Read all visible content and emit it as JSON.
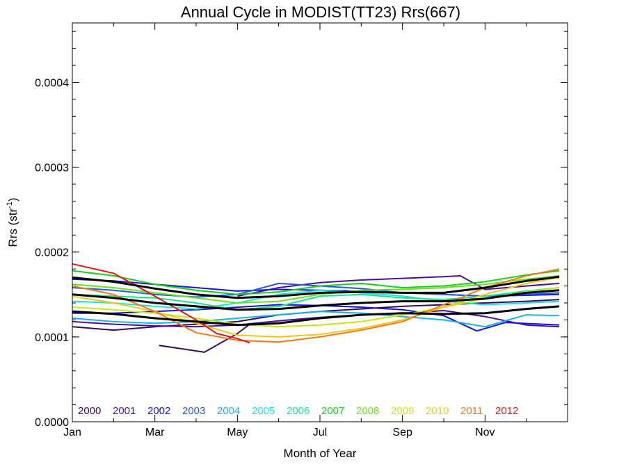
{
  "chart_data": {
    "type": "line",
    "title": "Annual Cycle in MODIST(TT23) Rrs(667)",
    "xlabel": "Month of Year",
    "ylabel": "Rrs (str",
    "ylabel_sup": "-1",
    "ylabel_close": ")",
    "xlim": [
      0,
      12
    ],
    "ylim": [
      0,
      0.00047
    ],
    "x_ticks": [
      {
        "value": 0,
        "label": "Jan"
      },
      {
        "value": 2,
        "label": "Mar"
      },
      {
        "value": 4,
        "label": "May"
      },
      {
        "value": 6,
        "label": "Jul"
      },
      {
        "value": 8,
        "label": "Sep"
      },
      {
        "value": 10,
        "label": "Nov"
      }
    ],
    "y_ticks": [
      {
        "value": 0.0,
        "label": "0.0000"
      },
      {
        "value": 0.0001,
        "label": "0.0001"
      },
      {
        "value": 0.0002,
        "label": "0.0002"
      },
      {
        "value": 0.0003,
        "label": "0.0003"
      },
      {
        "value": 0.0004,
        "label": "0.0004"
      }
    ],
    "legend_position": "bottom-left",
    "series": [
      {
        "name": "2000",
        "color": "#3b0a5c",
        "points": [
          [
            2.1,
            9e-05
          ],
          [
            3.2,
            8.2e-05
          ],
          [
            4,
            0.000104
          ],
          [
            4.3,
            0.000115
          ]
        ]
      },
      {
        "name": "2000",
        "color": "#3b0a5c",
        "points": [
          [
            0,
            0.000112
          ],
          [
            1,
            0.000108
          ],
          [
            2,
            0.000112
          ],
          [
            3,
            0.000115
          ],
          [
            4,
            0.000118
          ],
          [
            5,
            0.000126
          ],
          [
            6,
            0.00013
          ],
          [
            7,
            0.000133
          ],
          [
            8,
            0.000136
          ],
          [
            9,
            0.000138
          ],
          [
            10,
            0.00014
          ],
          [
            11,
            0.000142
          ],
          [
            11.8,
            0.000144
          ]
        ]
      },
      {
        "name": "2001",
        "color": "#4a0fa0",
        "points": [
          [
            4,
            0.000148
          ],
          [
            5,
            0.000158
          ],
          [
            6,
            0.000164
          ],
          [
            7,
            0.000167
          ],
          [
            8,
            0.000169
          ],
          [
            9,
            0.000171
          ],
          [
            9.4,
            0.000172
          ],
          [
            10,
            0.000156
          ],
          [
            11,
            0.00016
          ],
          [
            11.8,
            0.000163
          ]
        ]
      },
      {
        "name": "2001",
        "color": "#4a0fa0",
        "points": [
          [
            0,
            0.000118
          ],
          [
            1,
            0.000115
          ],
          [
            2,
            0.000113
          ],
          [
            3,
            0.000112
          ],
          [
            4,
            0.000114
          ],
          [
            5,
            0.000119
          ],
          [
            6,
            0.000123
          ],
          [
            7,
            0.000126
          ],
          [
            8,
            0.000128
          ],
          [
            9,
            0.000131
          ],
          [
            10,
            0.000124
          ],
          [
            11,
            0.000114
          ],
          [
            11.8,
            0.000112
          ]
        ]
      },
      {
        "name": "2002",
        "color": "#1414d2",
        "points": [
          [
            0,
            0.000168
          ],
          [
            1,
            0.000166
          ],
          [
            2,
            0.000162
          ],
          [
            3,
            0.000158
          ],
          [
            4,
            0.000154
          ],
          [
            5,
            0.000156
          ],
          [
            6,
            0.000155
          ],
          [
            7,
            0.000154
          ],
          [
            8,
            0.000152
          ],
          [
            9,
            0.00015
          ],
          [
            10,
            0.000148
          ],
          [
            11,
            0.000149
          ],
          [
            11.8,
            0.00015
          ]
        ]
      },
      {
        "name": "2002",
        "color": "#1414d2",
        "points": [
          [
            0,
            0.000128
          ],
          [
            1,
            0.000128
          ],
          [
            2,
            0.00013
          ],
          [
            3,
            0.000132
          ],
          [
            4,
            0.000135
          ],
          [
            5,
            0.000138
          ],
          [
            6,
            0.000137
          ],
          [
            7,
            0.000135
          ],
          [
            8,
            0.000132
          ],
          [
            9,
            0.000125
          ],
          [
            9.8,
            0.000107
          ],
          [
            10.5,
            0.000117
          ],
          [
            11.8,
            0.000114
          ]
        ]
      },
      {
        "name": "2003",
        "color": "#1e5ce6",
        "points": [
          [
            0,
            0.000158
          ],
          [
            1,
            0.000155
          ],
          [
            2,
            0.00015
          ],
          [
            3,
            0.000147
          ],
          [
            4,
            0.00015
          ],
          [
            5,
            0.000163
          ],
          [
            6,
            0.00016
          ],
          [
            7,
            0.000157
          ],
          [
            8,
            0.000152
          ],
          [
            9,
            0.00015
          ],
          [
            10,
            0.000148
          ],
          [
            11,
            0.00015
          ],
          [
            11.8,
            0.000152
          ]
        ]
      },
      {
        "name": "2004",
        "color": "#14b4e6",
        "points": [
          [
            0,
            0.000122
          ],
          [
            1,
            0.000118
          ],
          [
            2,
            0.000116
          ],
          [
            3,
            0.000118
          ],
          [
            4,
            0.000122
          ],
          [
            5,
            0.000126
          ],
          [
            6,
            0.00013
          ],
          [
            7,
            0.000128
          ],
          [
            8,
            0.000124
          ],
          [
            9,
            0.00012
          ],
          [
            10,
            0.000112
          ],
          [
            11,
            0.000126
          ],
          [
            11.8,
            0.000125
          ]
        ]
      },
      {
        "name": "2005",
        "color": "#14e6dc",
        "points": [
          [
            0,
            0.000142
          ],
          [
            1,
            0.00014
          ],
          [
            2,
            0.000136
          ],
          [
            3,
            0.000133
          ],
          [
            4,
            0.00014
          ],
          [
            5,
            0.00015
          ],
          [
            6,
            0.000155
          ],
          [
            7,
            0.000152
          ],
          [
            8,
            0.000148
          ],
          [
            9,
            0.000142
          ],
          [
            10,
            0.000138
          ],
          [
            11,
            0.00014
          ],
          [
            11.8,
            0.000142
          ]
        ]
      },
      {
        "name": "2006",
        "color": "#14e68c",
        "points": [
          [
            0,
            0.00015
          ],
          [
            1,
            0.000148
          ],
          [
            2,
            0.000146
          ],
          [
            3,
            0.00014
          ],
          [
            4,
            0.000132
          ],
          [
            5,
            0.000136
          ],
          [
            6,
            0.000148
          ],
          [
            7,
            0.00015
          ],
          [
            8,
            0.000146
          ],
          [
            9,
            0.000144
          ],
          [
            10,
            0.000148
          ],
          [
            11,
            0.000154
          ],
          [
            11.8,
            0.000158
          ]
        ]
      },
      {
        "name": "2007",
        "color": "#14d214",
        "points": [
          [
            0,
            0.000178
          ],
          [
            1,
            0.000172
          ],
          [
            2,
            0.000162
          ],
          [
            3,
            0.000155
          ],
          [
            4,
            0.00015
          ],
          [
            5,
            0.000153
          ],
          [
            6,
            0.00016
          ],
          [
            7,
            0.000163
          ],
          [
            8,
            0.000158
          ],
          [
            9,
            0.00016
          ],
          [
            10,
            0.000165
          ],
          [
            11,
            0.000173
          ],
          [
            11.8,
            0.000178
          ]
        ]
      },
      {
        "name": "2008",
        "color": "#64e614",
        "points": [
          [
            0,
            0.000162
          ],
          [
            1,
            0.000158
          ],
          [
            2,
            0.000152
          ],
          [
            3,
            0.000146
          ],
          [
            4,
            0.00014
          ],
          [
            5,
            0.000142
          ],
          [
            6,
            0.00015
          ],
          [
            7,
            0.000155
          ],
          [
            8,
            0.000156
          ],
          [
            9,
            0.000158
          ],
          [
            10,
            0.000162
          ],
          [
            11,
            0.000168
          ],
          [
            11.8,
            0.000172
          ]
        ]
      },
      {
        "name": "2009",
        "color": "#c8e614",
        "points": [
          [
            0,
            0.000135
          ],
          [
            1,
            0.000132
          ],
          [
            2,
            0.000128
          ],
          [
            3,
            0.000122
          ],
          [
            4,
            0.000115
          ],
          [
            5,
            0.000112
          ],
          [
            6,
            0.000114
          ],
          [
            7,
            0.000118
          ],
          [
            8,
            0.000126
          ],
          [
            9,
            0.000135
          ],
          [
            10,
            0.000145
          ],
          [
            11,
            0.000153
          ],
          [
            11.8,
            0.000158
          ]
        ]
      },
      {
        "name": "2010",
        "color": "#f0c814",
        "points": [
          [
            0,
            0.000148
          ],
          [
            1,
            0.00014
          ],
          [
            2,
            0.00013
          ],
          [
            3,
            0.000116
          ],
          [
            4,
            0.000102
          ],
          [
            5,
            0.0001
          ],
          [
            6,
            0.000103
          ],
          [
            7,
            0.00011
          ],
          [
            8,
            0.00012
          ],
          [
            9,
            0.000135
          ],
          [
            10,
            0.00015
          ],
          [
            11,
            0.000163
          ],
          [
            11.8,
            0.00017
          ]
        ]
      },
      {
        "name": "2011",
        "color": "#f57814",
        "points": [
          [
            0,
            0.00016
          ],
          [
            1,
            0.00015
          ],
          [
            2,
            0.00013
          ],
          [
            3,
            0.000105
          ],
          [
            4,
            9.6e-05
          ],
          [
            5,
            9.4e-05
          ],
          [
            6,
            0.0001
          ],
          [
            7,
            0.000108
          ],
          [
            8,
            0.000118
          ],
          [
            9,
            0.000138
          ],
          [
            10,
            0.000158
          ],
          [
            11,
            0.000172
          ],
          [
            11.8,
            0.00018
          ]
        ]
      },
      {
        "name": "2012",
        "color": "#e61414",
        "points": [
          [
            0,
            0.000186
          ],
          [
            1,
            0.000175
          ],
          [
            2,
            0.000148
          ],
          [
            3,
            0.00012
          ],
          [
            3.5,
            0.000104
          ],
          [
            4,
            9.8e-05
          ],
          [
            4.3,
            9.3e-05
          ]
        ]
      },
      {
        "name": "",
        "color": "#000000",
        "bold": true,
        "points": [
          [
            0,
            0.00017
          ],
          [
            1,
            0.000165
          ],
          [
            2,
            0.000157
          ],
          [
            3,
            0.00015
          ],
          [
            4,
            0.000146
          ],
          [
            5,
            0.000148
          ],
          [
            6,
            0.000152
          ],
          [
            7,
            0.000153
          ],
          [
            8,
            0.000152
          ],
          [
            9,
            0.000152
          ],
          [
            10,
            0.000158
          ],
          [
            11,
            0.000166
          ],
          [
            11.8,
            0.000171
          ]
        ]
      },
      {
        "name": "",
        "color": "#000000",
        "bold": true,
        "points": [
          [
            0,
            0.00015
          ],
          [
            1,
            0.000146
          ],
          [
            2,
            0.00014
          ],
          [
            3,
            0.000136
          ],
          [
            4,
            0.000132
          ],
          [
            5,
            0.000133
          ],
          [
            6,
            0.000137
          ],
          [
            7,
            0.00014
          ],
          [
            8,
            0.000142
          ],
          [
            9,
            0.000142
          ],
          [
            10,
            0.000145
          ],
          [
            11,
            0.000152
          ],
          [
            11.8,
            0.000155
          ]
        ]
      },
      {
        "name": "",
        "color": "#000000",
        "bold": true,
        "points": [
          [
            0,
            0.00013
          ],
          [
            1,
            0.000127
          ],
          [
            2,
            0.000122
          ],
          [
            3,
            0.000118
          ],
          [
            4,
            0.000114
          ],
          [
            5,
            0.000116
          ],
          [
            6,
            0.000122
          ],
          [
            7,
            0.000126
          ],
          [
            8,
            0.000128
          ],
          [
            9,
            0.000127
          ],
          [
            10,
            0.000128
          ],
          [
            11,
            0.000133
          ],
          [
            11.8,
            0.000136
          ]
        ]
      }
    ]
  }
}
